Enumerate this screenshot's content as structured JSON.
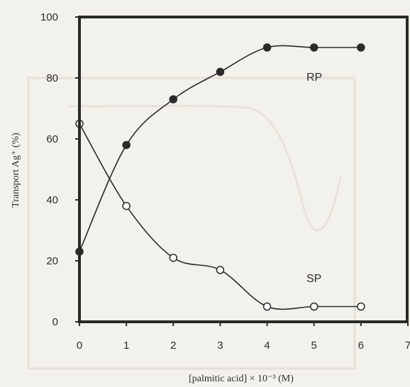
{
  "chart_data": {
    "type": "line",
    "xlabel": "[palmitic acid] × 10⁻³ (M)",
    "ylabel": "Transport Ag⁺ (%)",
    "xlim": [
      0,
      7
    ],
    "ylim": [
      0,
      100
    ],
    "x_ticks": [
      "0",
      "1",
      "2",
      "3",
      "4",
      "5",
      "6",
      "7"
    ],
    "y_ticks": [
      "0",
      "20",
      "40",
      "60",
      "80",
      "100"
    ],
    "grid": false,
    "series": [
      {
        "name": "RP",
        "marker": "filled-circle",
        "color": "#2a2a2a",
        "x": [
          0,
          1,
          2,
          3,
          4,
          5,
          6
        ],
        "y": [
          23,
          58,
          73,
          82,
          90,
          90,
          90
        ]
      },
      {
        "name": "SP",
        "marker": "open-circle",
        "color": "#2a2a2a",
        "x": [
          0,
          1,
          2,
          3,
          4,
          5,
          6
        ],
        "y": [
          65,
          38,
          21,
          17,
          5,
          5,
          5
        ]
      }
    ]
  }
}
